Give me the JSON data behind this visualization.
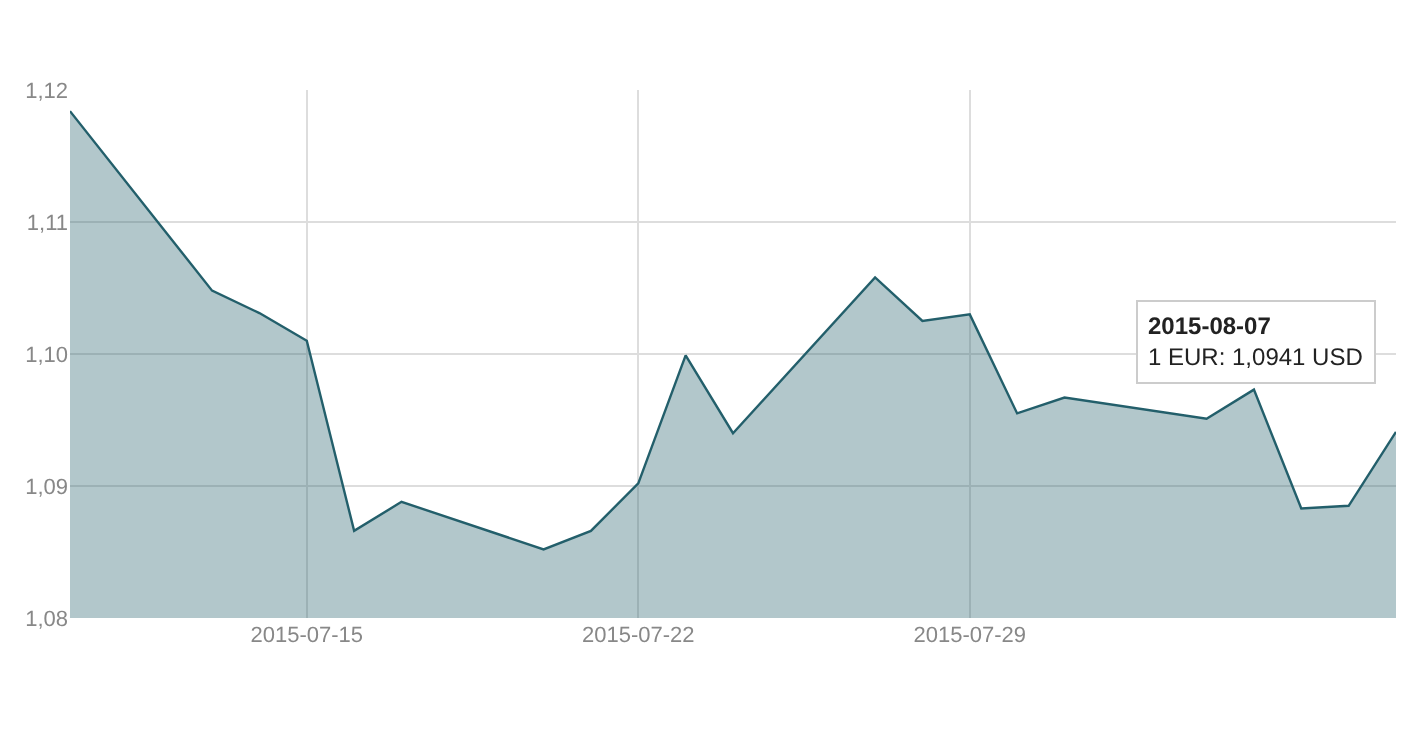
{
  "chart_data": {
    "type": "area",
    "x": [
      "2015-07-10",
      "2015-07-13",
      "2015-07-14",
      "2015-07-15",
      "2015-07-16",
      "2015-07-17",
      "2015-07-20",
      "2015-07-21",
      "2015-07-22",
      "2015-07-23",
      "2015-07-24",
      "2015-07-27",
      "2015-07-28",
      "2015-07-29",
      "2015-07-30",
      "2015-07-31",
      "2015-08-03",
      "2015-08-04",
      "2015-08-05",
      "2015-08-06",
      "2015-08-07"
    ],
    "series": [
      {
        "color": "#235f6b",
        "values": [
          1.1184,
          1.1048,
          1.1031,
          1.101,
          1.0866,
          1.0888,
          1.0852,
          1.0866,
          1.0902,
          1.0999,
          1.094,
          1.1058,
          1.1025,
          1.103,
          1.0955,
          1.0967,
          1.0951,
          1.0973,
          1.0883,
          1.0885,
          1.0941
        ]
      }
    ],
    "xlim": [
      "2015-07-10",
      "2015-08-07"
    ],
    "xticks": [
      "2015-07-15",
      "2015-07-22",
      "2015-07-29"
    ],
    "ylim": [
      1.08,
      1.12
    ],
    "yticks": [
      {
        "value": 1.08,
        "label": "1,08"
      },
      {
        "value": 1.09,
        "label": "1,09"
      },
      {
        "value": 1.1,
        "label": "1,10"
      },
      {
        "value": 1.11,
        "label": "1,11"
      },
      {
        "value": 1.12,
        "label": "1,12"
      }
    ],
    "annotations": [
      {
        "text": "2015-08-07\n1 EUR: 1,0941 USD",
        "x": "2015-08-07",
        "y": 1.0941
      }
    ],
    "grid": true
  }
}
